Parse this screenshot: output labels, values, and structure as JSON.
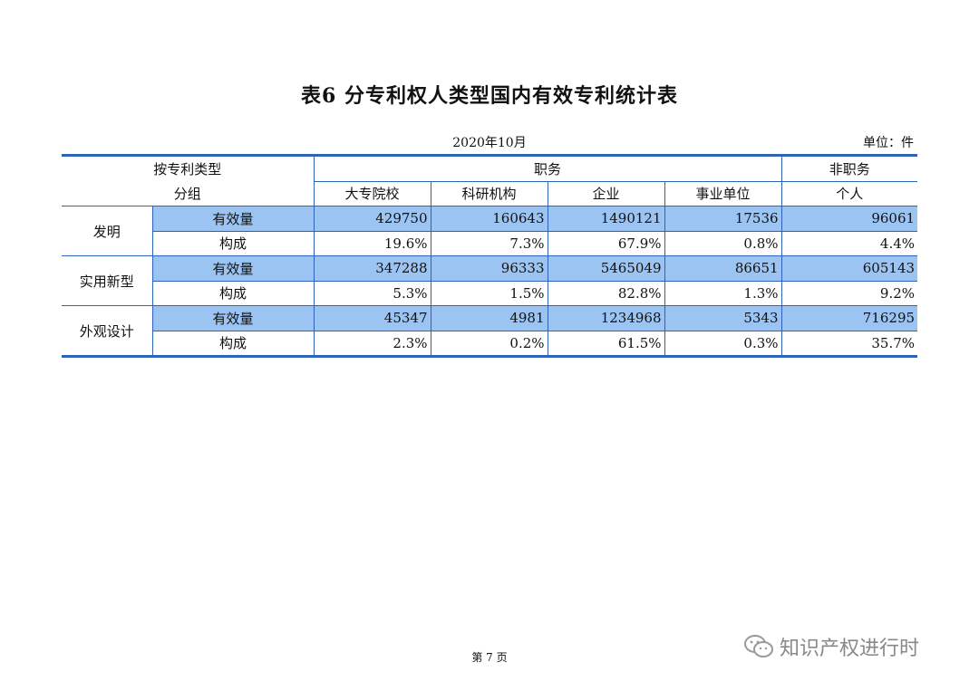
{
  "title": "表6 分专利权人类型国内有效专利统计表",
  "date": "2020年10月",
  "unit": "单位：件",
  "header": {
    "row1_left": "按专利类型",
    "row2_left": "分组",
    "service": "职务",
    "non_service": "非职务",
    "cols": [
      "大专院校",
      "科研机构",
      "企业",
      "事业单位",
      "个人"
    ]
  },
  "rows": [
    {
      "type": "发明",
      "count_label": "有效量",
      "counts": [
        "429750",
        "160643",
        "1490121",
        "17536",
        "96061"
      ],
      "share_label": "构成",
      "shares": [
        "19.6%",
        "7.3%",
        "67.9%",
        "0.8%",
        "4.4%"
      ]
    },
    {
      "type": "实用新型",
      "count_label": "有效量",
      "counts": [
        "347288",
        "96333",
        "5465049",
        "86651",
        "605143"
      ],
      "share_label": "构成",
      "shares": [
        "5.3%",
        "1.5%",
        "82.8%",
        "1.3%",
        "9.2%"
      ]
    },
    {
      "type": "外观设计",
      "count_label": "有效量",
      "counts": [
        "45347",
        "4981",
        "1234968",
        "5343",
        "716295"
      ],
      "share_label": "构成",
      "shares": [
        "2.3%",
        "0.2%",
        "61.5%",
        "0.3%",
        "35.7%"
      ]
    }
  ],
  "footer": {
    "page": "第 7 页",
    "watermark": "知识产权进行时",
    "watermark_icon": "wechat-icon"
  },
  "colors": {
    "border": "#2e63b8",
    "highlight": "#9cc4f2",
    "watermark": "#888888"
  }
}
